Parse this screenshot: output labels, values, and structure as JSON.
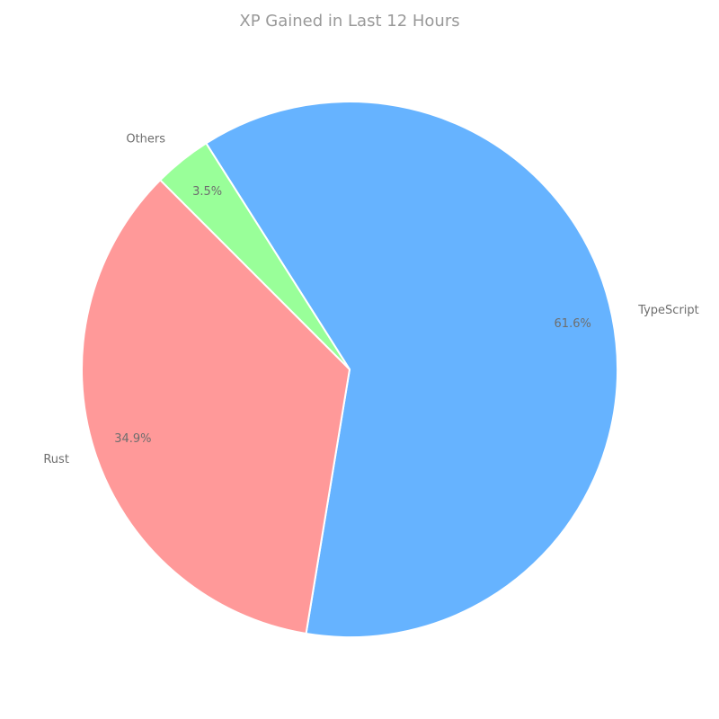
{
  "chart_data": {
    "type": "pie",
    "title": "XP Gained in Last 12 Hours",
    "slices": [
      {
        "name": "TypeScript",
        "value": 61.6,
        "pct_label": "61.6%",
        "color": "#66b3ff"
      },
      {
        "name": "Rust",
        "value": 34.9,
        "pct_label": "34.9%",
        "color": "#ff9999"
      },
      {
        "name": "Others",
        "value": 3.5,
        "pct_label": "3.5%",
        "color": "#99ff99"
      }
    ]
  }
}
